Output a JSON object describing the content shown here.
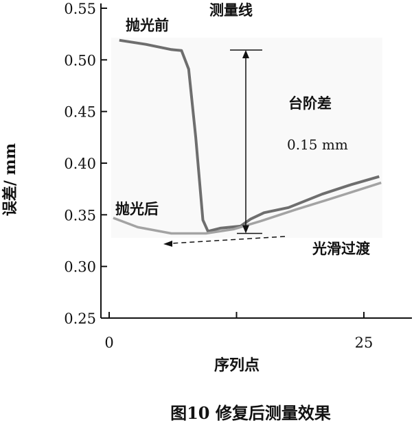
{
  "chart_data": {
    "type": "line",
    "title": "图10 修复后测量效果",
    "xlabel": "序列点",
    "ylabel": "误差/ mm",
    "xlim": [
      -0.8,
      30
    ],
    "ylim": [
      0.25,
      0.55
    ],
    "xticks": [
      0,
      25
    ],
    "xtick_labels": [
      "0",
      "25"
    ],
    "yticks": [
      0.25,
      0.3,
      0.35,
      0.4,
      0.45,
      0.5,
      0.55
    ],
    "ytick_labels": [
      "0.25",
      "0.30",
      "0.35",
      "0.40",
      "0.45",
      "0.50",
      "0.55"
    ],
    "grid": false,
    "series": [
      {
        "name": "抛光前",
        "color": "#6e6e6e",
        "x": [
          1.0,
          3.6,
          6.1,
          7.1,
          7.8,
          8.5,
          9.2,
          9.7,
          10.9,
          12.9,
          13.9,
          15.2,
          17.6,
          20.9,
          23.7,
          26.5
        ],
        "y": [
          0.519,
          0.515,
          0.51,
          0.509,
          0.491,
          0.425,
          0.345,
          0.334,
          0.337,
          0.339,
          0.346,
          0.352,
          0.357,
          0.37,
          0.379,
          0.387
        ]
      },
      {
        "name": "抛光后",
        "color": "#a3a3a3",
        "x": [
          0.4,
          2.8,
          6.1,
          9.5,
          12.2,
          14.9,
          18.3,
          21.6,
          26.7
        ],
        "y": [
          0.347,
          0.338,
          0.332,
          0.332,
          0.336,
          0.344,
          0.355,
          0.365,
          0.381
        ]
      }
    ],
    "annotations": {
      "measure_line": "测量线",
      "step_label": "台阶差",
      "step_value": "0.15 mm",
      "step_range": [
        0.332,
        0.5095
      ],
      "smooth_label": "光滑过渡"
    }
  }
}
